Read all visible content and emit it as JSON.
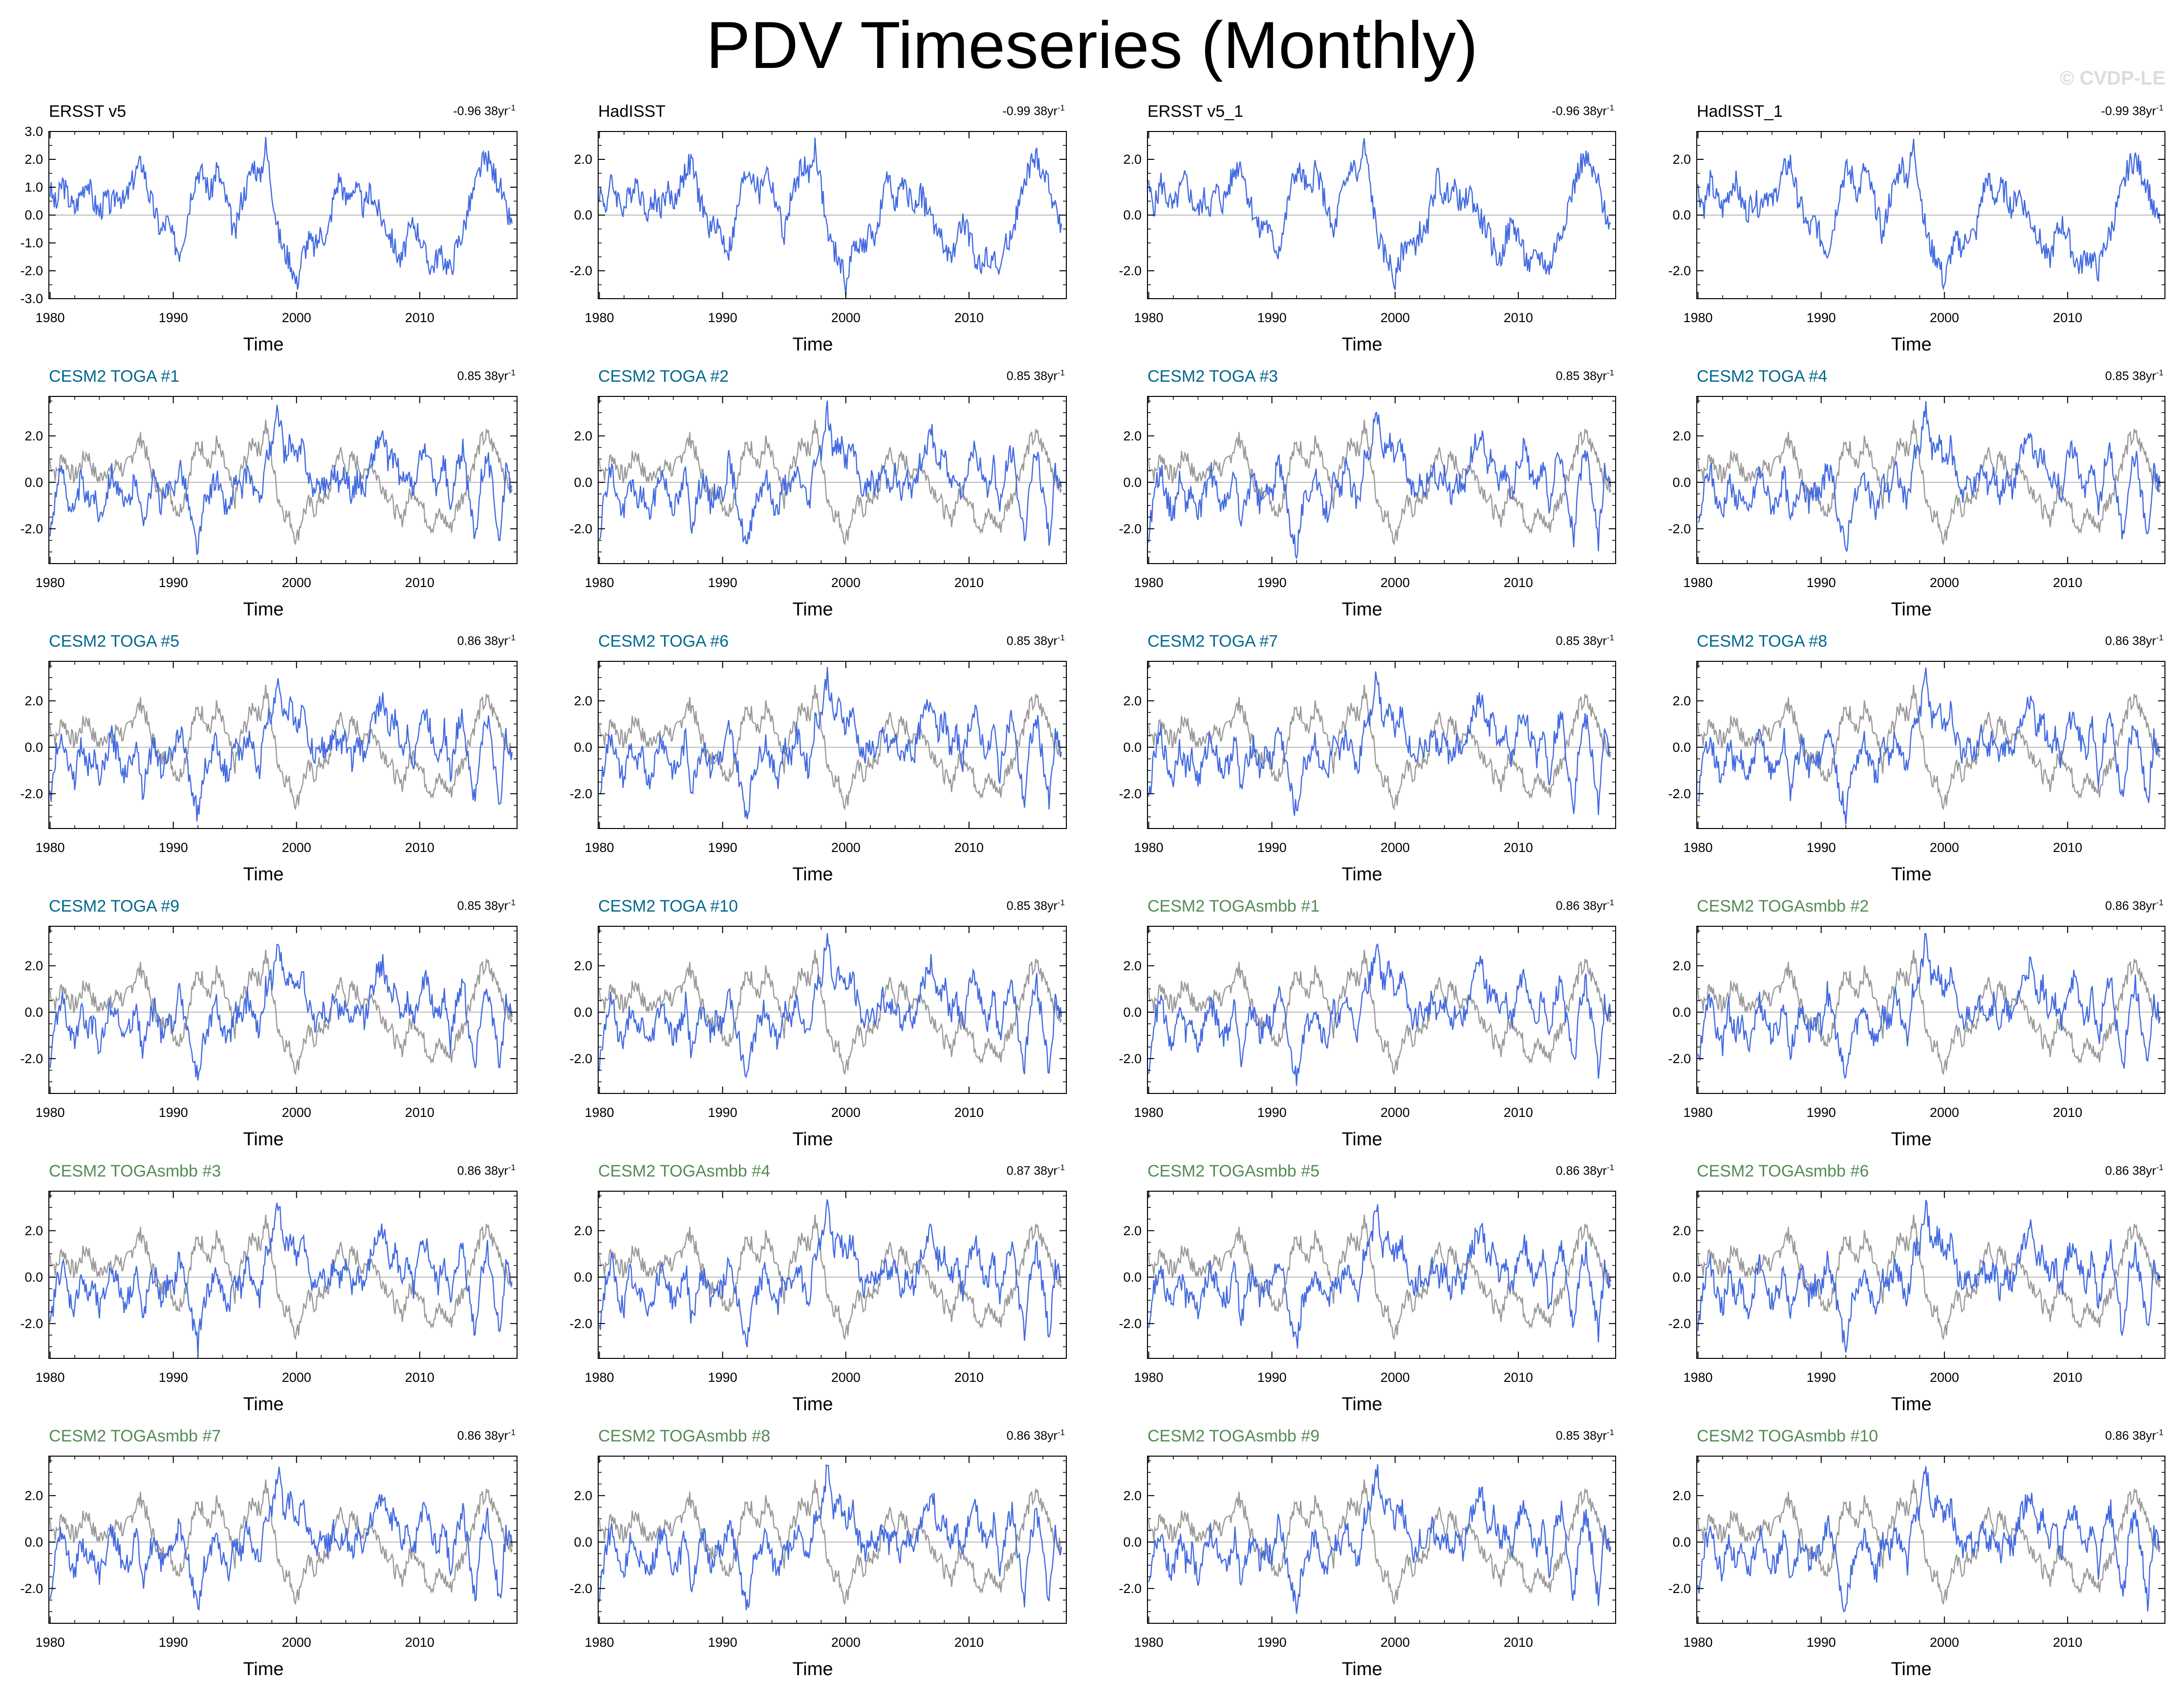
{
  "title": "PDV Timeseries (Monthly)",
  "copyright": "© CVDP-LE",
  "colors": {
    "model_line": "#4169e1",
    "observed_line": "#999999",
    "zero_line": "#bbbbbb",
    "obs_title": "#000000",
    "toga_title": "#00688b",
    "togasmbb_title": "#548b54"
  },
  "chart_data": {
    "type": "line",
    "xlabel": "Time",
    "x_range": [
      1979.9,
      2017.9
    ],
    "x_ticks": [
      "1980",
      "1990",
      "2000",
      "2010"
    ],
    "trend_unit": "38yr",
    "trend_exponent": "-1",
    "grid": false,
    "note_values": "series values are approximate monthly PDV index estimates read from the figure",
    "panels": [
      {
        "title": "ERSST v5",
        "kind": "obs",
        "trend": "-0.96",
        "ylim": [
          -3.0,
          3.0
        ],
        "yticks": [
          "3.0",
          "2.0",
          "1.0",
          "0.0",
          "-1.0",
          "-2.0",
          "-3.0"
        ]
      },
      {
        "title": "HadISST",
        "kind": "obs",
        "trend": "-0.99",
        "ylim": [
          -3.0,
          3.0
        ],
        "yticks": [
          "2.0",
          "0.0",
          "-2.0"
        ]
      },
      {
        "title": "ERSST v5_1",
        "kind": "obs",
        "trend": "-0.96",
        "ylim": [
          -3.0,
          3.0
        ],
        "yticks": [
          "2.0",
          "0.0",
          "-2.0"
        ]
      },
      {
        "title": "HadISST_1",
        "kind": "obs",
        "trend": "-0.99",
        "ylim": [
          -3.0,
          3.0
        ],
        "yticks": [
          "2.0",
          "0.0",
          "-2.0"
        ]
      },
      {
        "title": "CESM2 TOGA #1",
        "kind": "toga",
        "trend": "0.85",
        "ylim": [
          -3.5,
          3.7
        ],
        "yticks": [
          "2.0",
          "0.0",
          "-2.0"
        ]
      },
      {
        "title": "CESM2 TOGA #2",
        "kind": "toga",
        "trend": "0.85",
        "ylim": [
          -3.5,
          3.7
        ],
        "yticks": [
          "2.0",
          "0.0",
          "-2.0"
        ]
      },
      {
        "title": "CESM2 TOGA #3",
        "kind": "toga",
        "trend": "0.85",
        "ylim": [
          -3.5,
          3.7
        ],
        "yticks": [
          "2.0",
          "0.0",
          "-2.0"
        ]
      },
      {
        "title": "CESM2 TOGA #4",
        "kind": "toga",
        "trend": "0.85",
        "ylim": [
          -3.5,
          3.7
        ],
        "yticks": [
          "2.0",
          "0.0",
          "-2.0"
        ]
      },
      {
        "title": "CESM2 TOGA #5",
        "kind": "toga",
        "trend": "0.86",
        "ylim": [
          -3.5,
          3.7
        ],
        "yticks": [
          "2.0",
          "0.0",
          "-2.0"
        ]
      },
      {
        "title": "CESM2 TOGA #6",
        "kind": "toga",
        "trend": "0.85",
        "ylim": [
          -3.5,
          3.7
        ],
        "yticks": [
          "2.0",
          "0.0",
          "-2.0"
        ]
      },
      {
        "title": "CESM2 TOGA #7",
        "kind": "toga",
        "trend": "0.85",
        "ylim": [
          -3.5,
          3.7
        ],
        "yticks": [
          "2.0",
          "0.0",
          "-2.0"
        ]
      },
      {
        "title": "CESM2 TOGA #8",
        "kind": "toga",
        "trend": "0.86",
        "ylim": [
          -3.5,
          3.7
        ],
        "yticks": [
          "2.0",
          "0.0",
          "-2.0"
        ]
      },
      {
        "title": "CESM2 TOGA #9",
        "kind": "toga",
        "trend": "0.85",
        "ylim": [
          -3.5,
          3.7
        ],
        "yticks": [
          "2.0",
          "0.0",
          "-2.0"
        ]
      },
      {
        "title": "CESM2 TOGA #10",
        "kind": "toga",
        "trend": "0.85",
        "ylim": [
          -3.5,
          3.7
        ],
        "yticks": [
          "2.0",
          "0.0",
          "-2.0"
        ]
      },
      {
        "title": "CESM2 TOGAsmbb #1",
        "kind": "togasmbb",
        "trend": "0.86",
        "ylim": [
          -3.5,
          3.7
        ],
        "yticks": [
          "2.0",
          "0.0",
          "-2.0"
        ]
      },
      {
        "title": "CESM2 TOGAsmbb #2",
        "kind": "togasmbb",
        "trend": "0.86",
        "ylim": [
          -3.5,
          3.7
        ],
        "yticks": [
          "2.0",
          "0.0",
          "-2.0"
        ]
      },
      {
        "title": "CESM2 TOGAsmbb #3",
        "kind": "togasmbb",
        "trend": "0.86",
        "ylim": [
          -3.5,
          3.7
        ],
        "yticks": [
          "2.0",
          "0.0",
          "-2.0"
        ]
      },
      {
        "title": "CESM2 TOGAsmbb #4",
        "kind": "togasmbb",
        "trend": "0.87",
        "ylim": [
          -3.5,
          3.7
        ],
        "yticks": [
          "2.0",
          "0.0",
          "-2.0"
        ]
      },
      {
        "title": "CESM2 TOGAsmbb #5",
        "kind": "togasmbb",
        "trend": "0.86",
        "ylim": [
          -3.5,
          3.7
        ],
        "yticks": [
          "2.0",
          "0.0",
          "-2.0"
        ]
      },
      {
        "title": "CESM2 TOGAsmbb #6",
        "kind": "togasmbb",
        "trend": "0.86",
        "ylim": [
          -3.5,
          3.7
        ],
        "yticks": [
          "2.0",
          "0.0",
          "-2.0"
        ]
      },
      {
        "title": "CESM2 TOGAsmbb #7",
        "kind": "togasmbb",
        "trend": "0.86",
        "ylim": [
          -3.5,
          3.7
        ],
        "yticks": [
          "2.0",
          "0.0",
          "-2.0"
        ]
      },
      {
        "title": "CESM2 TOGAsmbb #8",
        "kind": "togasmbb",
        "trend": "0.86",
        "ylim": [
          -3.5,
          3.7
        ],
        "yticks": [
          "2.0",
          "0.0",
          "-2.0"
        ]
      },
      {
        "title": "CESM2 TOGAsmbb #9",
        "kind": "togasmbb",
        "trend": "0.85",
        "ylim": [
          -3.5,
          3.7
        ],
        "yticks": [
          "2.0",
          "0.0",
          "-2.0"
        ]
      },
      {
        "title": "CESM2 TOGAsmbb #10",
        "kind": "togasmbb",
        "trend": "0.86",
        "ylim": [
          -3.5,
          3.7
        ],
        "yticks": [
          "2.0",
          "0.0",
          "-2.0"
        ]
      }
    ],
    "observed_series": {
      "x": [
        1980.0,
        1980.5,
        1981.0,
        1981.5,
        1982.0,
        1982.5,
        1983.0,
        1983.5,
        1984.0,
        1984.5,
        1985.0,
        1985.5,
        1986.0,
        1986.5,
        1987.0,
        1987.5,
        1988.0,
        1988.5,
        1989.0,
        1989.5,
        1990.0,
        1990.5,
        1991.0,
        1991.5,
        1992.0,
        1992.5,
        1993.0,
        1993.5,
        1994.0,
        1994.5,
        1995.0,
        1995.5,
        1996.0,
        1996.5,
        1997.0,
        1997.5,
        1998.0,
        1998.5,
        1999.0,
        1999.5,
        2000.0,
        2000.5,
        2001.0,
        2001.5,
        2002.0,
        2002.5,
        2003.0,
        2003.5,
        2004.0,
        2004.5,
        2005.0,
        2005.5,
        2006.0,
        2006.5,
        2007.0,
        2007.5,
        2008.0,
        2008.5,
        2009.0,
        2009.5,
        2010.0,
        2010.5,
        2011.0,
        2011.5,
        2012.0,
        2012.5,
        2013.0,
        2013.5,
        2014.0,
        2014.5,
        2015.0,
        2015.5,
        2016.0,
        2016.5,
        2017.0,
        2017.5
      ],
      "y": [
        0.9,
        0.3,
        1.2,
        0.6,
        0.2,
        0.8,
        1.3,
        0.5,
        0.1,
        0.6,
        0.3,
        0.9,
        0.4,
        1.0,
        1.6,
        1.9,
        0.8,
        0.1,
        -0.6,
        -0.2,
        -0.9,
        -1.3,
        -0.4,
        0.9,
        1.6,
        1.4,
        0.7,
        1.7,
        1.0,
        0.2,
        -0.8,
        0.5,
        1.1,
        1.9,
        1.3,
        2.5,
        1.0,
        -0.6,
        -1.3,
        -1.6,
        -2.5,
        -1.4,
        -0.9,
        -1.2,
        -0.6,
        -0.8,
        0.6,
        1.4,
        0.5,
        1.0,
        0.8,
        0.2,
        0.9,
        0.3,
        -0.2,
        -0.6,
        -1.2,
        -1.7,
        -0.8,
        -0.3,
        -0.7,
        -1.5,
        -1.9,
        -1.4,
        -1.6,
        -2.0,
        -1.1,
        -0.6,
        0.3,
        1.0,
        1.8,
        2.0,
        1.5,
        1.1,
        0.1,
        -0.3
      ]
    },
    "model_series": {
      "x": [
        1980.0,
        1980.5,
        1981.0,
        1981.5,
        1982.0,
        1982.5,
        1983.0,
        1983.5,
        1984.0,
        1984.5,
        1985.0,
        1985.5,
        1986.0,
        1986.5,
        1987.0,
        1987.5,
        1988.0,
        1988.5,
        1989.0,
        1989.5,
        1990.0,
        1990.5,
        1991.0,
        1991.5,
        1992.0,
        1992.5,
        1993.0,
        1993.5,
        1994.0,
        1994.5,
        1995.0,
        1995.5,
        1996.0,
        1996.5,
        1997.0,
        1997.5,
        1998.0,
        1998.5,
        1999.0,
        1999.5,
        2000.0,
        2000.5,
        2001.0,
        2001.5,
        2002.0,
        2002.5,
        2003.0,
        2003.5,
        2004.0,
        2004.5,
        2005.0,
        2005.5,
        2006.0,
        2006.5,
        2007.0,
        2007.5,
        2008.0,
        2008.5,
        2009.0,
        2009.5,
        2010.0,
        2010.5,
        2011.0,
        2011.5,
        2012.0,
        2012.5,
        2013.0,
        2013.5,
        2014.0,
        2014.5,
        2015.0,
        2015.5,
        2016.0,
        2016.5,
        2017.0,
        2017.5
      ],
      "y": [
        -2.2,
        -0.3,
        0.6,
        -0.8,
        -1.4,
        0.2,
        -0.9,
        -0.4,
        -1.5,
        -0.6,
        0.5,
        -0.3,
        -1.1,
        -0.7,
        0.4,
        -1.9,
        -0.5,
        0.2,
        -1.0,
        -0.3,
        -0.6,
        0.9,
        -0.2,
        -1.8,
        -2.9,
        -1.0,
        -0.4,
        0.3,
        -0.8,
        -1.3,
        0.1,
        -0.5,
        0.6,
        -0.2,
        -1.0,
        1.1,
        1.4,
        3.2,
        1.2,
        1.8,
        0.9,
        1.6,
        0.3,
        -0.5,
        0.1,
        -0.2,
        0.6,
        -0.1,
        0.4,
        -0.6,
        0.2,
        -0.4,
        0.8,
        1.6,
        2.1,
        0.7,
        1.2,
        -0.1,
        0.5,
        -0.6,
        1.0,
        1.5,
        0.4,
        -0.4,
        0.9,
        -1.3,
        0.6,
        1.4,
        -0.7,
        -2.4,
        0.3,
        1.2,
        -0.5,
        -2.5,
        0.4,
        -0.2
      ]
    }
  }
}
